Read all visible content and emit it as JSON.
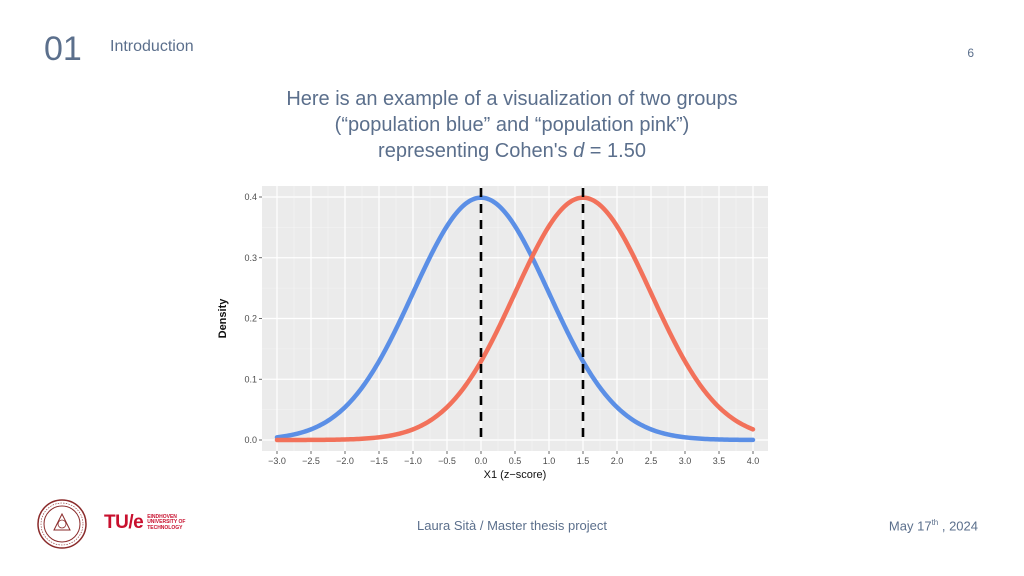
{
  "header": {
    "section_number": "01",
    "section_title": "Introduction",
    "page_number": "6"
  },
  "headline": {
    "line1": "Here is an example of a visualization of two groups",
    "line2": "(“population blue” and “population pink”)",
    "line3_prefix": "representing Cohen's ",
    "line3_var": "d",
    "line3_suffix": " = 1.50"
  },
  "footer": {
    "center_text": "Laura Sità / Master thesis project",
    "date_prefix": "May 17",
    "date_sup": "th",
    "date_suffix": " , 2024",
    "tue_mark": "TU/e",
    "tue_lines": [
      "EINDHOVEN",
      "UNIVERSITY OF",
      "TECHNOLOGY"
    ]
  },
  "chart_data": {
    "type": "line",
    "xlabel": "X1 (z−score)",
    "ylabel": "Density",
    "xlim": [
      -3.0,
      4.0
    ],
    "ylim": [
      0.0,
      0.4
    ],
    "x_ticks": [
      "−3.0",
      "−2.5",
      "−2.0",
      "−1.5",
      "−1.0",
      "−0.5",
      "0.0",
      "0.5",
      "1.0",
      "1.5",
      "2.0",
      "2.5",
      "3.0",
      "3.5",
      "4.0"
    ],
    "y_ticks": [
      "0.0",
      "0.1",
      "0.2",
      "0.3",
      "0.4"
    ],
    "grid": true,
    "series": [
      {
        "color": "#5b8fe6",
        "mean": 0.0,
        "sd": 1.0,
        "x": [
          -3.0,
          -2.5,
          -2.0,
          -1.5,
          -1.0,
          -0.5,
          0.0,
          0.5,
          1.0,
          1.5,
          2.0,
          2.5,
          3.0,
          3.5,
          4.0
        ],
        "y": [
          0.004,
          0.018,
          0.054,
          0.13,
          0.242,
          0.352,
          0.399,
          0.352,
          0.242,
          0.13,
          0.054,
          0.018,
          0.004,
          0.001,
          0.0
        ]
      },
      {
        "color": "#f2715a",
        "mean": 1.5,
        "sd": 1.0,
        "x": [
          -3.0,
          -2.5,
          -2.0,
          -1.5,
          -1.0,
          -0.5,
          0.0,
          0.5,
          1.0,
          1.5,
          2.0,
          2.5,
          3.0,
          3.5,
          4.0
        ],
        "y": [
          0.0,
          0.0,
          0.001,
          0.004,
          0.018,
          0.054,
          0.13,
          0.242,
          0.352,
          0.399,
          0.352,
          0.242,
          0.13,
          0.054,
          0.018
        ]
      }
    ],
    "vlines": [
      0.0,
      1.5
    ]
  }
}
